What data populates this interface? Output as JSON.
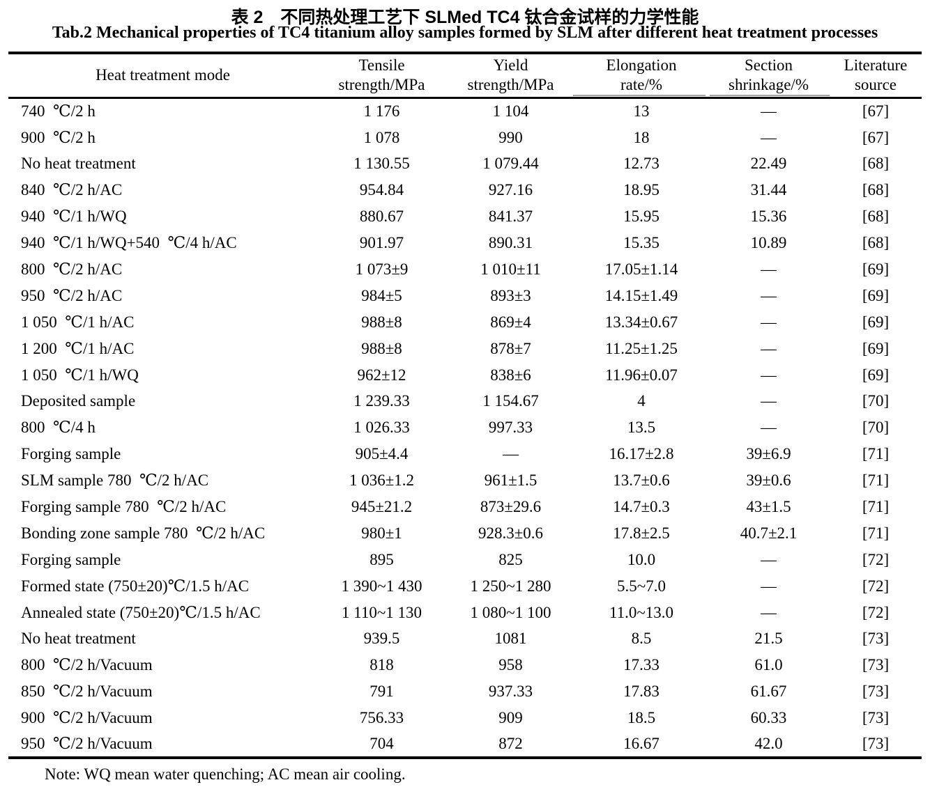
{
  "page": {
    "title_zh": "表 2　不同热处理工艺下 SLMed TC4 钛合金试样的力学性能",
    "title_en": "Tab.2 Mechanical properties of TC4 titanium alloy samples formed by SLM after different heat treatment processes",
    "note": "Note: WQ mean water quenching; AC mean air cooling."
  },
  "table": {
    "columns": [
      {
        "id": "mode",
        "label": "Heat treatment mode"
      },
      {
        "id": "tensile",
        "label": "Tensile\nstrength/MPa"
      },
      {
        "id": "yield",
        "label": "Yield\nstrength/MPa"
      },
      {
        "id": "elongation",
        "label": "Elongation\nrate/%"
      },
      {
        "id": "shrinkage",
        "label": "Section\nshrinkage/%"
      },
      {
        "id": "source",
        "label": "Literature\nsource"
      }
    ],
    "rows": [
      [
        "740 ℃/2 h",
        "1 176",
        "1 104",
        "13",
        "—",
        "[67]"
      ],
      [
        "900 ℃/2 h",
        "1 078",
        "990",
        "18",
        "—",
        "[67]"
      ],
      [
        "No heat treatment",
        "1 130.55",
        "1 079.44",
        "12.73",
        "22.49",
        "[68]"
      ],
      [
        "840 ℃/2 h/AC",
        "954.84",
        "927.16",
        "18.95",
        "31.44",
        "[68]"
      ],
      [
        "940 ℃/1 h/WQ",
        "880.67",
        "841.37",
        "15.95",
        "15.36",
        "[68]"
      ],
      [
        "940 ℃/1 h/WQ+540 ℃/4 h/AC",
        "901.97",
        "890.31",
        "15.35",
        "10.89",
        "[68]"
      ],
      [
        "800 ℃/2 h/AC",
        "1 073±9",
        "1 010±11",
        "17.05±1.14",
        "—",
        "[69]"
      ],
      [
        "950 ℃/2 h/AC",
        "984±5",
        "893±3",
        "14.15±1.49",
        "—",
        "[69]"
      ],
      [
        "1 050 ℃/1 h/AC",
        "988±8",
        "869±4",
        "13.34±0.67",
        "—",
        "[69]"
      ],
      [
        "1 200 ℃/1 h/AC",
        "988±8",
        "878±7",
        "11.25±1.25",
        "—",
        "[69]"
      ],
      [
        "1 050 ℃/1 h/WQ",
        "962±12",
        "838±6",
        "11.96±0.07",
        "—",
        "[69]"
      ],
      [
        "Deposited sample",
        "1 239.33",
        "1 154.67",
        "4",
        "—",
        "[70]"
      ],
      [
        "800 ℃/4 h",
        "1 026.33",
        "997.33",
        "13.5",
        "—",
        "[70]"
      ],
      [
        "Forging sample",
        "905±4.4",
        "—",
        "16.17±2.8",
        "39±6.9",
        "[71]"
      ],
      [
        "SLM sample 780 ℃/2 h/AC",
        "1 036±1.2",
        "961±1.5",
        "13.7±0.6",
        "39±0.6",
        "[71]"
      ],
      [
        "Forging sample 780 ℃/2 h/AC",
        "945±21.2",
        "873±29.6",
        "14.7±0.3",
        "43±1.5",
        "[71]"
      ],
      [
        "Bonding zone sample 780 ℃/2 h/AC",
        "980±1",
        "928.3±0.6",
        "17.8±2.5",
        "40.7±2.1",
        "[71]"
      ],
      [
        "Forging sample",
        "895",
        "825",
        "10.0",
        "—",
        "[72]"
      ],
      [
        "Formed state (750±20)℃/1.5 h/AC",
        "1 390~1 430",
        "1 250~1 280",
        "5.5~7.0",
        "—",
        "[72]"
      ],
      [
        "Annealed state (750±20)℃/1.5 h/AC",
        "1 110~1 130",
        "1 080~1 100",
        "11.0~13.0",
        "—",
        "[72]"
      ],
      [
        "No heat treatment",
        "939.5",
        "1081",
        "8.5",
        "21.5",
        "[73]"
      ],
      [
        "800 ℃/2 h/Vacuum",
        "818",
        "958",
        "17.33",
        "61.0",
        "[73]"
      ],
      [
        "850 ℃/2 h/Vacuum",
        "791",
        "937.33",
        "17.83",
        "61.67",
        "[73]"
      ],
      [
        "900 ℃/2 h/Vacuum",
        "756.33",
        "909",
        "18.5",
        "60.33",
        "[73]"
      ],
      [
        "950 ℃/2 h/Vacuum",
        "704",
        "872",
        "16.67",
        "42.0",
        "[73]"
      ]
    ]
  }
}
